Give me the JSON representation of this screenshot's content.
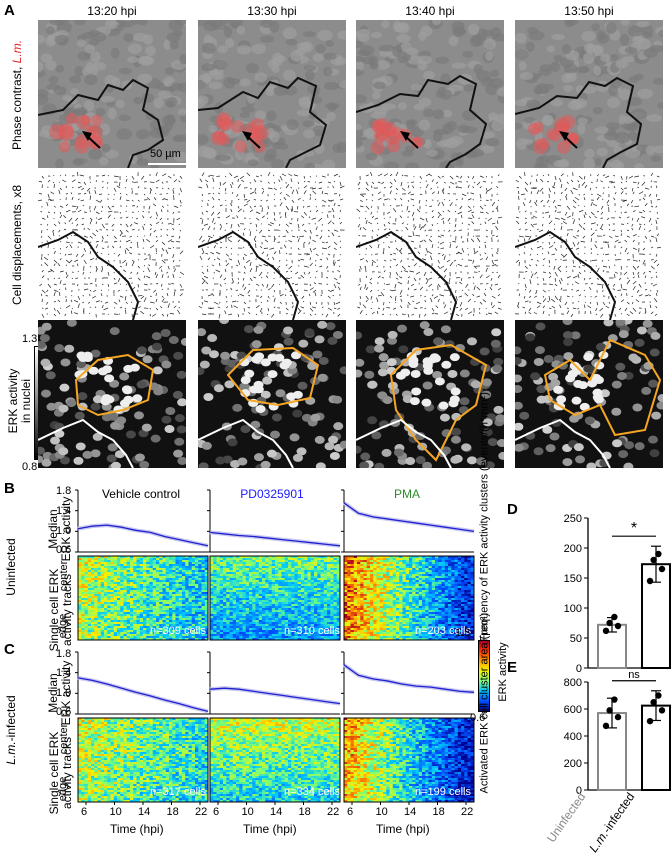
{
  "panel_labels": {
    "A": "A",
    "B": "B",
    "C": "C",
    "D": "D",
    "E": "E"
  },
  "timepoints": [
    "13:20 hpi",
    "13:30 hpi",
    "13:40 hpi",
    "13:50 hpi"
  ],
  "row_labels": {
    "phase_prefix": "Phase contrast, ",
    "phase_organism": "L.m.",
    "displacements": "Cell displacements, x8",
    "erk_line1": "ERK activity",
    "erk_line2": "in nuclei"
  },
  "scale_bar": "50 µm",
  "erk_scale": {
    "max": "1.3",
    "min": "0.8"
  },
  "conditions": [
    {
      "label": "Vehicle control",
      "color": "#000000"
    },
    {
      "label": "PD0325901",
      "color": "#1a1aff"
    },
    {
      "label": "PMA",
      "color": "#2e8b2e"
    }
  ],
  "group_labels": {
    "uninfected": "Uninfected",
    "infected_italic": "L.m.",
    "infected_suffix": "-infected"
  },
  "median_label": {
    "line1": "Median",
    "line2": "ERK activity"
  },
  "tracks_label": {
    "line1": "Single cell ERK",
    "line2": "activity tracks"
  },
  "center": "center",
  "edge": "edge",
  "median_yticks": [
    "1.8",
    "1.4",
    "1.0",
    "0.6"
  ],
  "time_ticks": [
    "6",
    "10",
    "14",
    "18",
    "22"
  ],
  "time_label": "Time (hpi)",
  "cell_counts": {
    "B": [
      "n=309 cells",
      "n=310 cells",
      "n=203 cells"
    ],
    "C": [
      "n=317 cells",
      "n=334 cells",
      "n=199 cells"
    ]
  },
  "colorbar": {
    "max": "1.3",
    "min": "0.6",
    "label": "ERK activity"
  },
  "chart_data": [
    {
      "type": "bar",
      "panel": "D",
      "ylabel": "Frequency of ERK activity clusters (events/(h*mm²)",
      "categories": [
        "Uninfected",
        "L.m.-infected"
      ],
      "values": [
        72,
        173
      ],
      "errors": [
        12,
        30
      ],
      "points": [
        [
          62,
          70,
          75,
          85
        ],
        [
          145,
          165,
          180,
          190
        ]
      ],
      "ylim": [
        0,
        250
      ],
      "yticks": [
        "0",
        "50",
        "100",
        "150",
        "200",
        "250"
      ],
      "significance": "*"
    },
    {
      "type": "bar",
      "panel": "E",
      "ylabel": "Activated ERK cell cluster area (µm²)",
      "categories": [
        "Uninfected",
        "L.m.-infected"
      ],
      "values": [
        570,
        625
      ],
      "errors": [
        110,
        110
      ],
      "points": [
        [
          475,
          540,
          590,
          670
        ],
        [
          510,
          590,
          650,
          700
        ]
      ],
      "ylim": [
        0,
        800
      ],
      "yticks": [
        "0",
        "200",
        "400",
        "600",
        "800"
      ],
      "significance": "ns"
    }
  ],
  "xcategory_display": {
    "uninfected": "Uninfected",
    "infected_italic": "L.m.",
    "infected_suffix": "-infected"
  }
}
